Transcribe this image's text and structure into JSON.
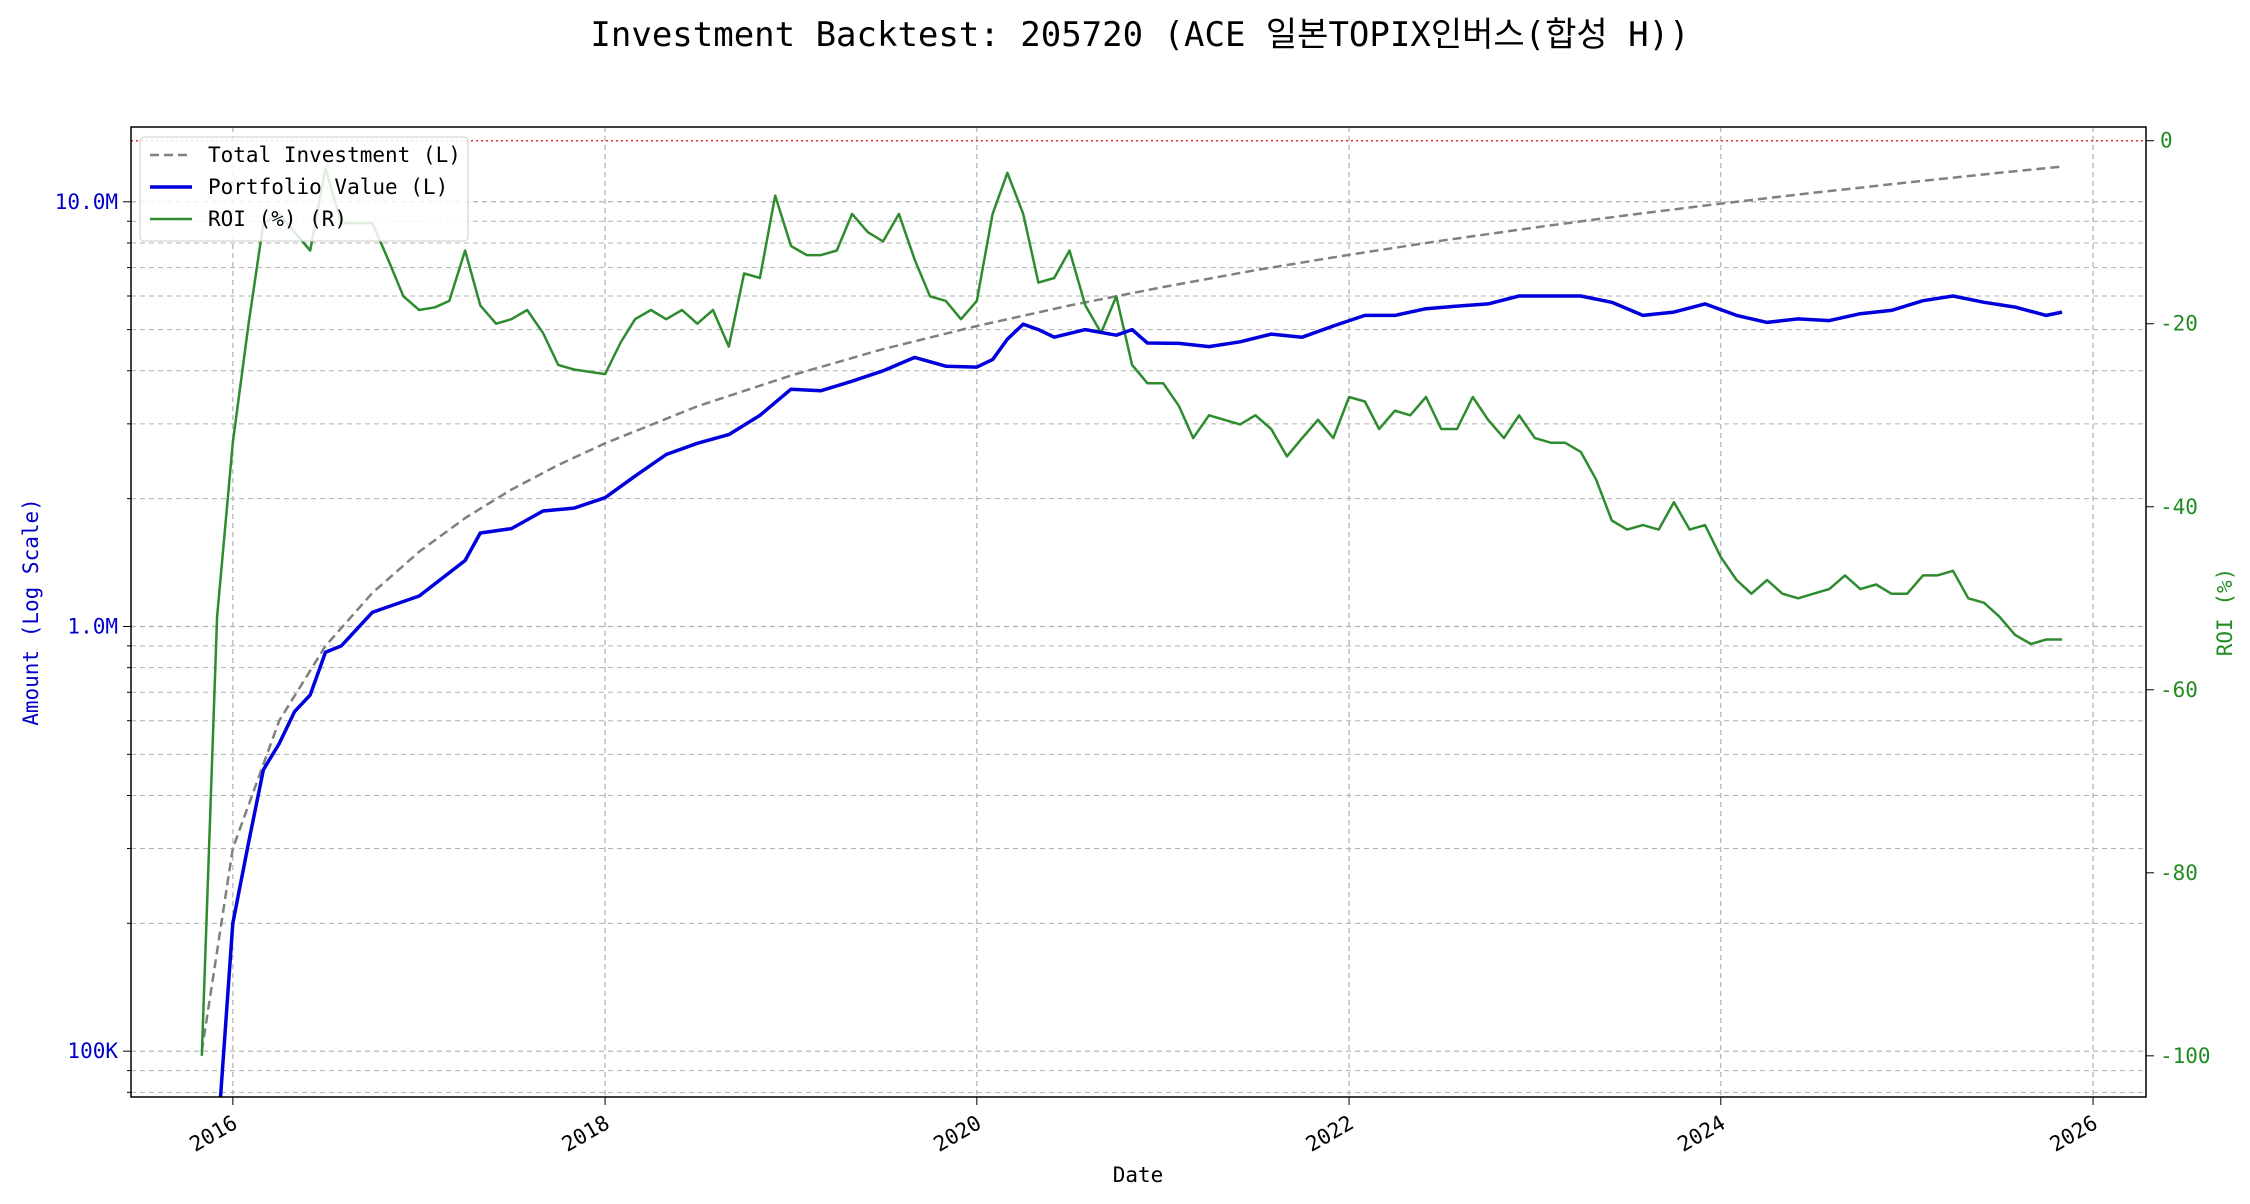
{
  "colors": {
    "total_investment": "#808080",
    "portfolio_value": "#0000dd",
    "roi": "#2e8b2e",
    "left_axis": "#0000cc",
    "right_axis": "#228b22",
    "zero_line": "#e03030",
    "grid": "#b0b0b0"
  },
  "chart_data": {
    "type": "line",
    "title": "Investment Backtest: 205720 (ACE 일본TOPIX인버스(합성 H))",
    "xlabel": "Date",
    "ylabel_left": "Amount (Log Scale)",
    "ylabel_right": "ROI (%)",
    "x_range": [
      "2015-06-15",
      "2026-04-15"
    ],
    "x_ticks": [
      "2016",
      "2018",
      "2020",
      "2022",
      "2024",
      "2026"
    ],
    "y_left_scale": "log",
    "y_left_range": [
      78000,
      15000000
    ],
    "y_left_ticks": [
      {
        "value": 100000,
        "label": "100K"
      },
      {
        "value": 1000000,
        "label": "1.0M"
      },
      {
        "value": 10000000,
        "label": "10.0M"
      }
    ],
    "y_right_range": [
      -104.5,
      1.5
    ],
    "y_right_ticks": [
      0,
      -20,
      -40,
      -60,
      -80,
      -100
    ],
    "grid": true,
    "legend_position": "top-left",
    "reference_line": {
      "axis": "right",
      "value": 0,
      "style": "dotted"
    },
    "series": [
      {
        "name": "Total Investment (L)",
        "axis": "left",
        "style": "dashed",
        "x": [
          "2015-11-01",
          "2016-01-01",
          "2016-04-01",
          "2016-07-01",
          "2016-10-01",
          "2017-01-01",
          "2017-04-01",
          "2017-07-01",
          "2017-10-01",
          "2018-01-01",
          "2018-07-01",
          "2019-01-01",
          "2019-07-01",
          "2020-01-01",
          "2020-07-01",
          "2021-01-01",
          "2021-07-01",
          "2022-01-01",
          "2022-07-01",
          "2023-01-01",
          "2023-07-01",
          "2024-01-01",
          "2024-07-01",
          "2025-01-01",
          "2025-07-01",
          "2025-11-01"
        ],
        "values": [
          100000,
          300000,
          600000,
          900000,
          1200000,
          1500000,
          1800000,
          2100000,
          2400000,
          2700000,
          3300000,
          3900000,
          4500000,
          5100000,
          5700000,
          6300000,
          6900000,
          7500000,
          8100000,
          8700000,
          9300000,
          9900000,
          10500000,
          11100000,
          11700000,
          12100000
        ]
      },
      {
        "name": "Portfolio Value (L)",
        "axis": "left",
        "style": "solid",
        "x": [
          "2015-12-01",
          "2016-01-01",
          "2016-02-01",
          "2016-03-01",
          "2016-04-01",
          "2016-05-01",
          "2016-06-01",
          "2016-07-01",
          "2016-08-01",
          "2016-10-01",
          "2017-01-01",
          "2017-04-01",
          "2017-05-01",
          "2017-07-01",
          "2017-09-01",
          "2017-11-01",
          "2018-01-01",
          "2018-03-01",
          "2018-05-01",
          "2018-07-01",
          "2018-09-01",
          "2018-11-01",
          "2019-01-01",
          "2019-03-01",
          "2019-05-01",
          "2019-07-01",
          "2019-09-01",
          "2019-11-01",
          "2020-01-01",
          "2020-02-01",
          "2020-03-01",
          "2020-04-01",
          "2020-05-01",
          "2020-06-01",
          "2020-08-01",
          "2020-10-01",
          "2020-11-01",
          "2020-12-01",
          "2021-02-01",
          "2021-04-01",
          "2021-06-01",
          "2021-08-01",
          "2021-10-01",
          "2021-12-01",
          "2022-02-01",
          "2022-04-01",
          "2022-06-01",
          "2022-08-01",
          "2022-10-01",
          "2022-12-01",
          "2023-02-01",
          "2023-04-01",
          "2023-06-01",
          "2023-08-01",
          "2023-10-01",
          "2023-12-01",
          "2024-02-01",
          "2024-04-01",
          "2024-06-01",
          "2024-08-01",
          "2024-10-01",
          "2024-12-01",
          "2025-02-01",
          "2025-04-01",
          "2025-06-01",
          "2025-08-01",
          "2025-10-01",
          "2025-11-01"
        ],
        "values": [
          60000,
          200000,
          310000,
          460000,
          530000,
          630000,
          690000,
          870000,
          900000,
          1080000,
          1180000,
          1430000,
          1660000,
          1700000,
          1870000,
          1900000,
          2010000,
          2260000,
          2540000,
          2700000,
          2830000,
          3140000,
          3620000,
          3590000,
          3780000,
          4000000,
          4300000,
          4100000,
          4080000,
          4250000,
          4750000,
          5150000,
          5000000,
          4800000,
          5000000,
          4850000,
          5000000,
          4650000,
          4640000,
          4560000,
          4680000,
          4880000,
          4800000,
          5100000,
          5400000,
          5400000,
          5600000,
          5680000,
          5750000,
          6000000,
          6000000,
          6000000,
          5800000,
          5400000,
          5500000,
          5750000,
          5400000,
          5200000,
          5300000,
          5250000,
          5450000,
          5550000,
          5850000,
          6000000,
          5800000,
          5650000,
          5400000,
          5500000
        ]
      },
      {
        "name": "ROI (%) (R)",
        "axis": "right",
        "style": "solid",
        "x": [
          "2015-11-01",
          "2015-12-01",
          "2016-01-01",
          "2016-02-01",
          "2016-03-01",
          "2016-04-01",
          "2016-05-01",
          "2016-06-01",
          "2016-07-01",
          "2016-08-01",
          "2016-10-01",
          "2016-11-01",
          "2016-12-01",
          "2017-01-01",
          "2017-02-01",
          "2017-03-01",
          "2017-04-01",
          "2017-05-01",
          "2017-06-01",
          "2017-07-01",
          "2017-08-01",
          "2017-09-01",
          "2017-10-01",
          "2017-11-01",
          "2018-01-01",
          "2018-02-01",
          "2018-03-01",
          "2018-04-01",
          "2018-05-01",
          "2018-06-01",
          "2018-07-01",
          "2018-08-01",
          "2018-09-01",
          "2018-10-01",
          "2018-11-01",
          "2018-12-01",
          "2019-01-01",
          "2019-02-01",
          "2019-03-01",
          "2019-04-01",
          "2019-05-01",
          "2019-06-01",
          "2019-07-01",
          "2019-08-01",
          "2019-09-01",
          "2019-10-01",
          "2019-11-01",
          "2019-12-01",
          "2020-01-01",
          "2020-02-01",
          "2020-03-01",
          "2020-04-01",
          "2020-05-01",
          "2020-06-01",
          "2020-07-01",
          "2020-08-01",
          "2020-09-01",
          "2020-10-01",
          "2020-11-01",
          "2020-12-01",
          "2021-01-01",
          "2021-02-01",
          "2021-03-01",
          "2021-04-01",
          "2021-05-01",
          "2021-06-01",
          "2021-07-01",
          "2021-08-01",
          "2021-09-01",
          "2021-10-01",
          "2021-11-01",
          "2021-12-01",
          "2022-01-01",
          "2022-02-01",
          "2022-03-01",
          "2022-04-01",
          "2022-05-01",
          "2022-06-01",
          "2022-07-01",
          "2022-08-01",
          "2022-09-01",
          "2022-10-01",
          "2022-11-01",
          "2022-12-01",
          "2023-01-01",
          "2023-02-01",
          "2023-03-01",
          "2023-04-01",
          "2023-05-01",
          "2023-06-01",
          "2023-07-01",
          "2023-08-01",
          "2023-09-01",
          "2023-10-01",
          "2023-11-01",
          "2023-12-01",
          "2024-01-01",
          "2024-02-01",
          "2024-03-01",
          "2024-04-01",
          "2024-05-01",
          "2024-06-01",
          "2024-07-01",
          "2024-08-01",
          "2024-09-01",
          "2024-10-01",
          "2024-11-01",
          "2024-12-01",
          "2025-01-01",
          "2025-02-01",
          "2025-03-01",
          "2025-04-01",
          "2025-05-01",
          "2025-06-01",
          "2025-07-01",
          "2025-08-01",
          "2025-09-01",
          "2025-10-01",
          "2025-11-01"
        ],
        "values": [
          -100,
          -52,
          -33,
          -20,
          -9,
          -8,
          -10,
          -12,
          -3,
          -9,
          -9,
          -13,
          -17,
          -18.5,
          -18.2,
          -17.5,
          -12,
          -18,
          -20,
          -19.5,
          -18.5,
          -21,
          -24.5,
          -25,
          -25.5,
          -22,
          -19.5,
          -18.5,
          -19.5,
          -18.5,
          -20,
          -18.5,
          -22.5,
          -14.5,
          -15,
          -6,
          -11.5,
          -12.5,
          -12.5,
          -12,
          -8,
          -10,
          -11,
          -8,
          -13,
          -17,
          -17.5,
          -19.5,
          -17.5,
          -8,
          -3.5,
          -8,
          -15.5,
          -15,
          -12,
          -18,
          -21,
          -17,
          -24.5,
          -26.5,
          -26.5,
          -29,
          -32.5,
          -30,
          -30.5,
          -31,
          -30,
          -31.5,
          -34.5,
          -32.5,
          -30.5,
          -32.5,
          -28,
          -28.5,
          -31.5,
          -29.5,
          -30,
          -28,
          -31.5,
          -31.5,
          -28,
          -30.5,
          -32.5,
          -30,
          -32.5,
          -33,
          -33,
          -34,
          -37,
          -41.5,
          -42.5,
          -42,
          -42.5,
          -39.5,
          -42.5,
          -42,
          -45.5,
          -48,
          -49.5,
          -48,
          -49.5,
          -50,
          -49.5,
          -49,
          -47.5,
          -49,
          -48.5,
          -49.5,
          -49.5,
          -47.5,
          -47.5,
          -47,
          -50,
          -50.5,
          -52,
          -54,
          -55,
          -54.5,
          -54.5
        ]
      }
    ]
  }
}
